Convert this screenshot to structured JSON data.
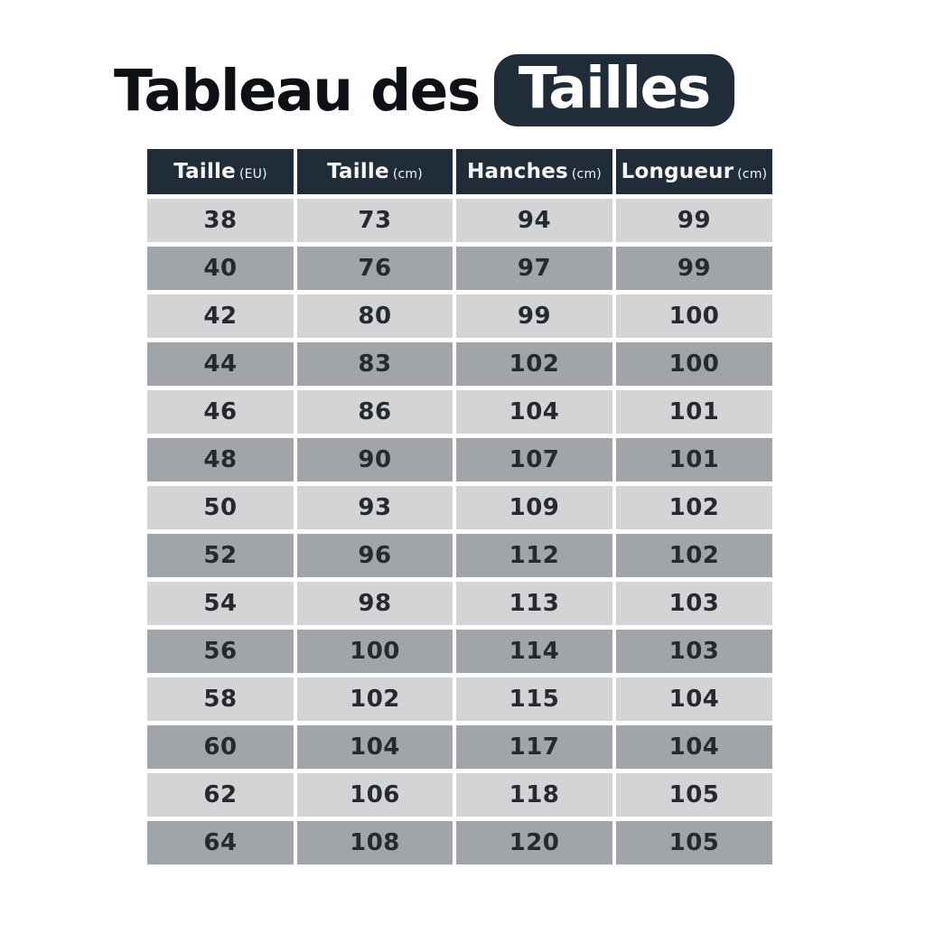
{
  "title": {
    "text": "Tableau des",
    "badge": "Tailles"
  },
  "table": {
    "columns": [
      {
        "label": "Taille",
        "unit": "(EU)"
      },
      {
        "label": "Taille",
        "unit": "(cm)"
      },
      {
        "label": "Hanches",
        "unit": "(cm)"
      },
      {
        "label": "Longueur",
        "unit": "(cm)"
      }
    ],
    "rows": [
      [
        "38",
        "73",
        "94",
        "99"
      ],
      [
        "40",
        "76",
        "97",
        "99"
      ],
      [
        "42",
        "80",
        "99",
        "100"
      ],
      [
        "44",
        "83",
        "102",
        "100"
      ],
      [
        "46",
        "86",
        "104",
        "101"
      ],
      [
        "48",
        "90",
        "107",
        "101"
      ],
      [
        "50",
        "93",
        "109",
        "102"
      ],
      [
        "52",
        "96",
        "112",
        "102"
      ],
      [
        "54",
        "98",
        "113",
        "103"
      ],
      [
        "56",
        "100",
        "114",
        "103"
      ],
      [
        "58",
        "102",
        "115",
        "104"
      ],
      [
        "60",
        "104",
        "117",
        "104"
      ],
      [
        "62",
        "106",
        "118",
        "105"
      ],
      [
        "64",
        "108",
        "120",
        "105"
      ]
    ]
  },
  "colors": {
    "header_bg": "#212c39",
    "badge_bg": "#212c39",
    "row_light": "#d2d4d6",
    "row_dark": "#a1a5a9",
    "title_text": "#0d1015",
    "cell_text": "#26292e",
    "header_text": "#f5f6f7"
  },
  "chart_data": {
    "type": "table",
    "title": "Tableau des Tailles",
    "columns": [
      "Taille (EU)",
      "Taille (cm)",
      "Hanches (cm)",
      "Longueur (cm)"
    ],
    "rows": [
      [
        38,
        73,
        94,
        99
      ],
      [
        40,
        76,
        97,
        99
      ],
      [
        42,
        80,
        99,
        100
      ],
      [
        44,
        83,
        102,
        100
      ],
      [
        46,
        86,
        104,
        101
      ],
      [
        48,
        90,
        107,
        101
      ],
      [
        50,
        93,
        109,
        102
      ],
      [
        52,
        96,
        112,
        102
      ],
      [
        54,
        98,
        113,
        103
      ],
      [
        56,
        100,
        114,
        103
      ],
      [
        58,
        102,
        115,
        104
      ],
      [
        60,
        104,
        117,
        104
      ],
      [
        62,
        106,
        118,
        105
      ],
      [
        64,
        108,
        120,
        105
      ]
    ],
    "layout_hints": {
      "header_style": "dark navy bar, white text",
      "row_style": "alternating light/medium gray stripes separated by white gaps",
      "alignment": "center"
    }
  }
}
